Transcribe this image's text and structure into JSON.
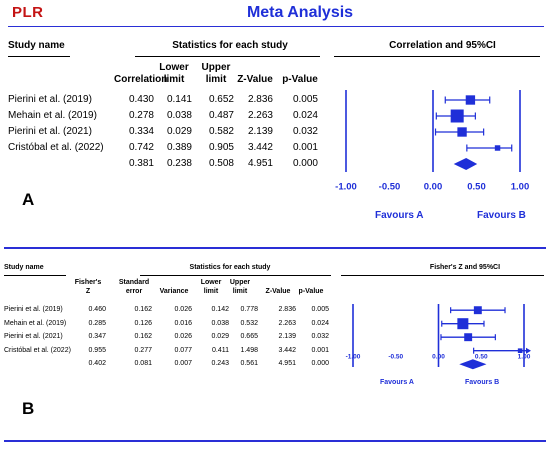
{
  "header": {
    "logo_text": "PLR",
    "title": "Meta Analysis"
  },
  "chart_data": [
    {
      "panel": "A",
      "type": "forest",
      "headers": {
        "study": "Study name",
        "group": "Statistics for each study",
        "plot": "Correlation and 95%CI",
        "columns": [
          [
            "Correlation"
          ],
          [
            "Lower",
            "limit"
          ],
          [
            "Upper",
            "limit"
          ],
          [
            "Z-Value"
          ],
          [
            "p-Value"
          ]
        ]
      },
      "rows": [
        {
          "study": "Pierini et al. (2019)",
          "values": [
            "0.430",
            "0.141",
            "0.652",
            "2.836",
            "0.005"
          ],
          "est": 0.43,
          "lower": 0.141,
          "upper": 0.652,
          "weight": "medium"
        },
        {
          "study": "Mehain et al. (2019)",
          "values": [
            "0.278",
            "0.038",
            "0.487",
            "2.263",
            "0.024"
          ],
          "est": 0.278,
          "lower": 0.038,
          "upper": 0.487,
          "weight": "large"
        },
        {
          "study": "Pierini et al. (2021)",
          "values": [
            "0.334",
            "0.029",
            "0.582",
            "2.139",
            "0.032"
          ],
          "est": 0.334,
          "lower": 0.029,
          "upper": 0.582,
          "weight": "medium"
        },
        {
          "study": "Cristóbal et al. (2022)",
          "values": [
            "0.742",
            "0.389",
            "0.905",
            "3.442",
            "0.001"
          ],
          "est": 0.742,
          "lower": 0.389,
          "upper": 0.905,
          "weight": "small"
        }
      ],
      "summary": {
        "values": [
          "0.381",
          "0.238",
          "0.508",
          "4.951",
          "0.000"
        ],
        "est": 0.381,
        "lower": 0.238,
        "upper": 0.508
      },
      "axis": {
        "min": -1,
        "max": 1,
        "ticks": [
          "-1.00",
          "-0.50",
          "0.00",
          "0.50",
          "1.00"
        ]
      },
      "favours_left": "Favours A",
      "favours_right": "Favours B",
      "color": "#1f2fd8"
    },
    {
      "panel": "B",
      "type": "forest",
      "headers": {
        "study": "Study name",
        "group": "Statistics for each study",
        "plot": "Fisher's Z and 95%CI",
        "columns": [
          [
            "Fisher's",
            "Z"
          ],
          [
            "Standard",
            "error"
          ],
          [
            "Variance"
          ],
          [
            "Lower",
            "limit"
          ],
          [
            "Upper",
            "limit"
          ],
          [
            "Z-Value"
          ],
          [
            "p-Value"
          ]
        ]
      },
      "rows": [
        {
          "study": "Pierini et al. (2019)",
          "values": [
            "0.460",
            "0.162",
            "0.026",
            "0.142",
            "0.778",
            "2.836",
            "0.005"
          ],
          "est": 0.46,
          "lower": 0.142,
          "upper": 0.778,
          "weight": "medium"
        },
        {
          "study": "Mehain et al. (2019)",
          "values": [
            "0.285",
            "0.126",
            "0.016",
            "0.038",
            "0.532",
            "2.263",
            "0.024"
          ],
          "est": 0.285,
          "lower": 0.038,
          "upper": 0.532,
          "weight": "large"
        },
        {
          "study": "Pierini et al. (2021)",
          "values": [
            "0.347",
            "0.162",
            "0.026",
            "0.029",
            "0.665",
            "2.139",
            "0.032"
          ],
          "est": 0.347,
          "lower": 0.029,
          "upper": 0.665,
          "weight": "medium"
        },
        {
          "study": "Cristóbal et al. (2022)",
          "values": [
            "0.955",
            "0.277",
            "0.077",
            "0.411",
            "1.498",
            "3.442",
            "0.001"
          ],
          "est": 0.955,
          "lower": 0.411,
          "upper": 1.498,
          "weight": "small"
        }
      ],
      "summary": {
        "values": [
          "0.402",
          "0.081",
          "0.007",
          "0.243",
          "0.561",
          "4.951",
          "0.000"
        ],
        "est": 0.402,
        "lower": 0.243,
        "upper": 0.561
      },
      "axis": {
        "min": -1,
        "max": 1,
        "ticks": [
          "-1.00",
          "-0.50",
          "0.00",
          "0.50",
          "1.00"
        ]
      },
      "favours_left": "Favours A",
      "favours_right": "Favours B",
      "color": "#1f2fd8"
    }
  ]
}
